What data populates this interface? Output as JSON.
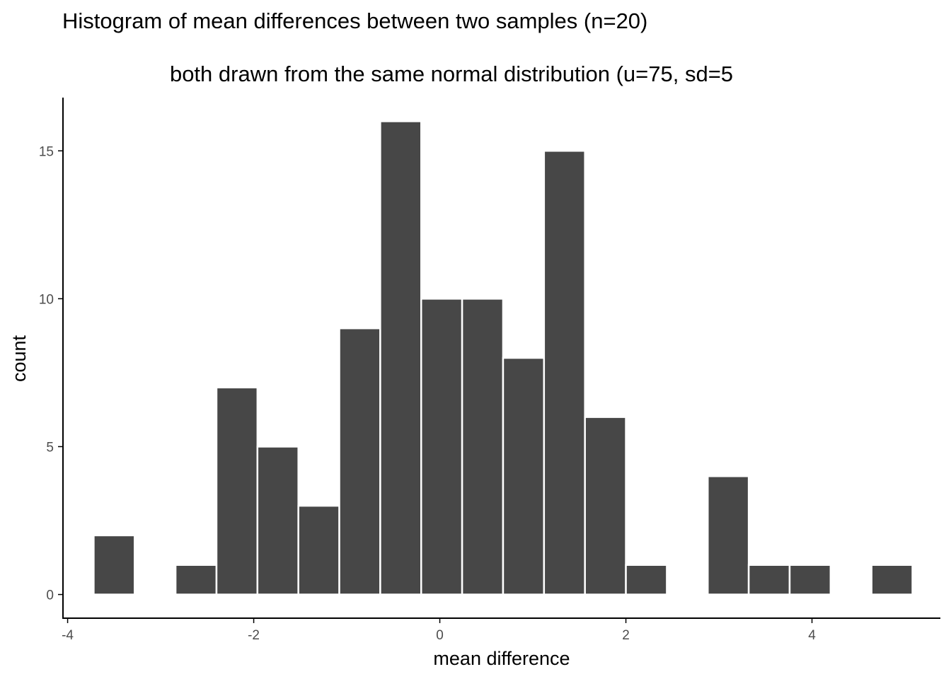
{
  "chart_data": {
    "type": "bar",
    "subtype": "histogram",
    "title": "Histogram of mean differences between two samples (n=20)",
    "subtitle": "both drawn from the same normal distribution (u=75, sd=5",
    "xlabel": "mean difference",
    "ylabel": "count",
    "xlim": [
      -4.05,
      5.38
    ],
    "ylim": [
      -0.8,
      16.8
    ],
    "x_ticks": [
      -4,
      -2,
      0,
      2,
      4
    ],
    "x_tick_labels": [
      "-4",
      "-2",
      "0",
      "2",
      "4"
    ],
    "y_ticks": [
      0,
      5,
      10,
      15
    ],
    "y_tick_labels": [
      "0",
      "5",
      "10",
      "15"
    ],
    "bin_width": 0.44,
    "bins": [
      {
        "x_start": -3.72,
        "x_end": -3.28,
        "count": 2
      },
      {
        "x_start": -3.28,
        "x_end": -2.84,
        "count": 0
      },
      {
        "x_start": -2.84,
        "x_end": -2.4,
        "count": 1
      },
      {
        "x_start": -2.4,
        "x_end": -1.96,
        "count": 7
      },
      {
        "x_start": -1.96,
        "x_end": -1.52,
        "count": 5
      },
      {
        "x_start": -1.52,
        "x_end": -1.08,
        "count": 3
      },
      {
        "x_start": -1.08,
        "x_end": -0.64,
        "count": 9
      },
      {
        "x_start": -0.64,
        "x_end": -0.2,
        "count": 16
      },
      {
        "x_start": -0.2,
        "x_end": 0.24,
        "count": 10
      },
      {
        "x_start": 0.24,
        "x_end": 0.68,
        "count": 10
      },
      {
        "x_start": 0.68,
        "x_end": 1.12,
        "count": 8
      },
      {
        "x_start": 1.12,
        "x_end": 1.56,
        "count": 15
      },
      {
        "x_start": 1.56,
        "x_end": 2.0,
        "count": 6
      },
      {
        "x_start": 2.0,
        "x_end": 2.44,
        "count": 1
      },
      {
        "x_start": 2.44,
        "x_end": 2.88,
        "count": 0
      },
      {
        "x_start": 2.88,
        "x_end": 3.32,
        "count": 4
      },
      {
        "x_start": 3.32,
        "x_end": 3.76,
        "count": 1
      },
      {
        "x_start": 3.76,
        "x_end": 4.2,
        "count": 1
      },
      {
        "x_start": 4.2,
        "x_end": 4.64,
        "count": 0
      },
      {
        "x_start": 4.64,
        "x_end": 5.08,
        "count": 1
      }
    ],
    "grid": false,
    "legend": "none",
    "colors": {
      "bar_fill": "#474747",
      "bar_outline": "#ffffff",
      "axis_line": "#000000",
      "tick_label": "#4d4d4d",
      "text": "#000000"
    }
  }
}
